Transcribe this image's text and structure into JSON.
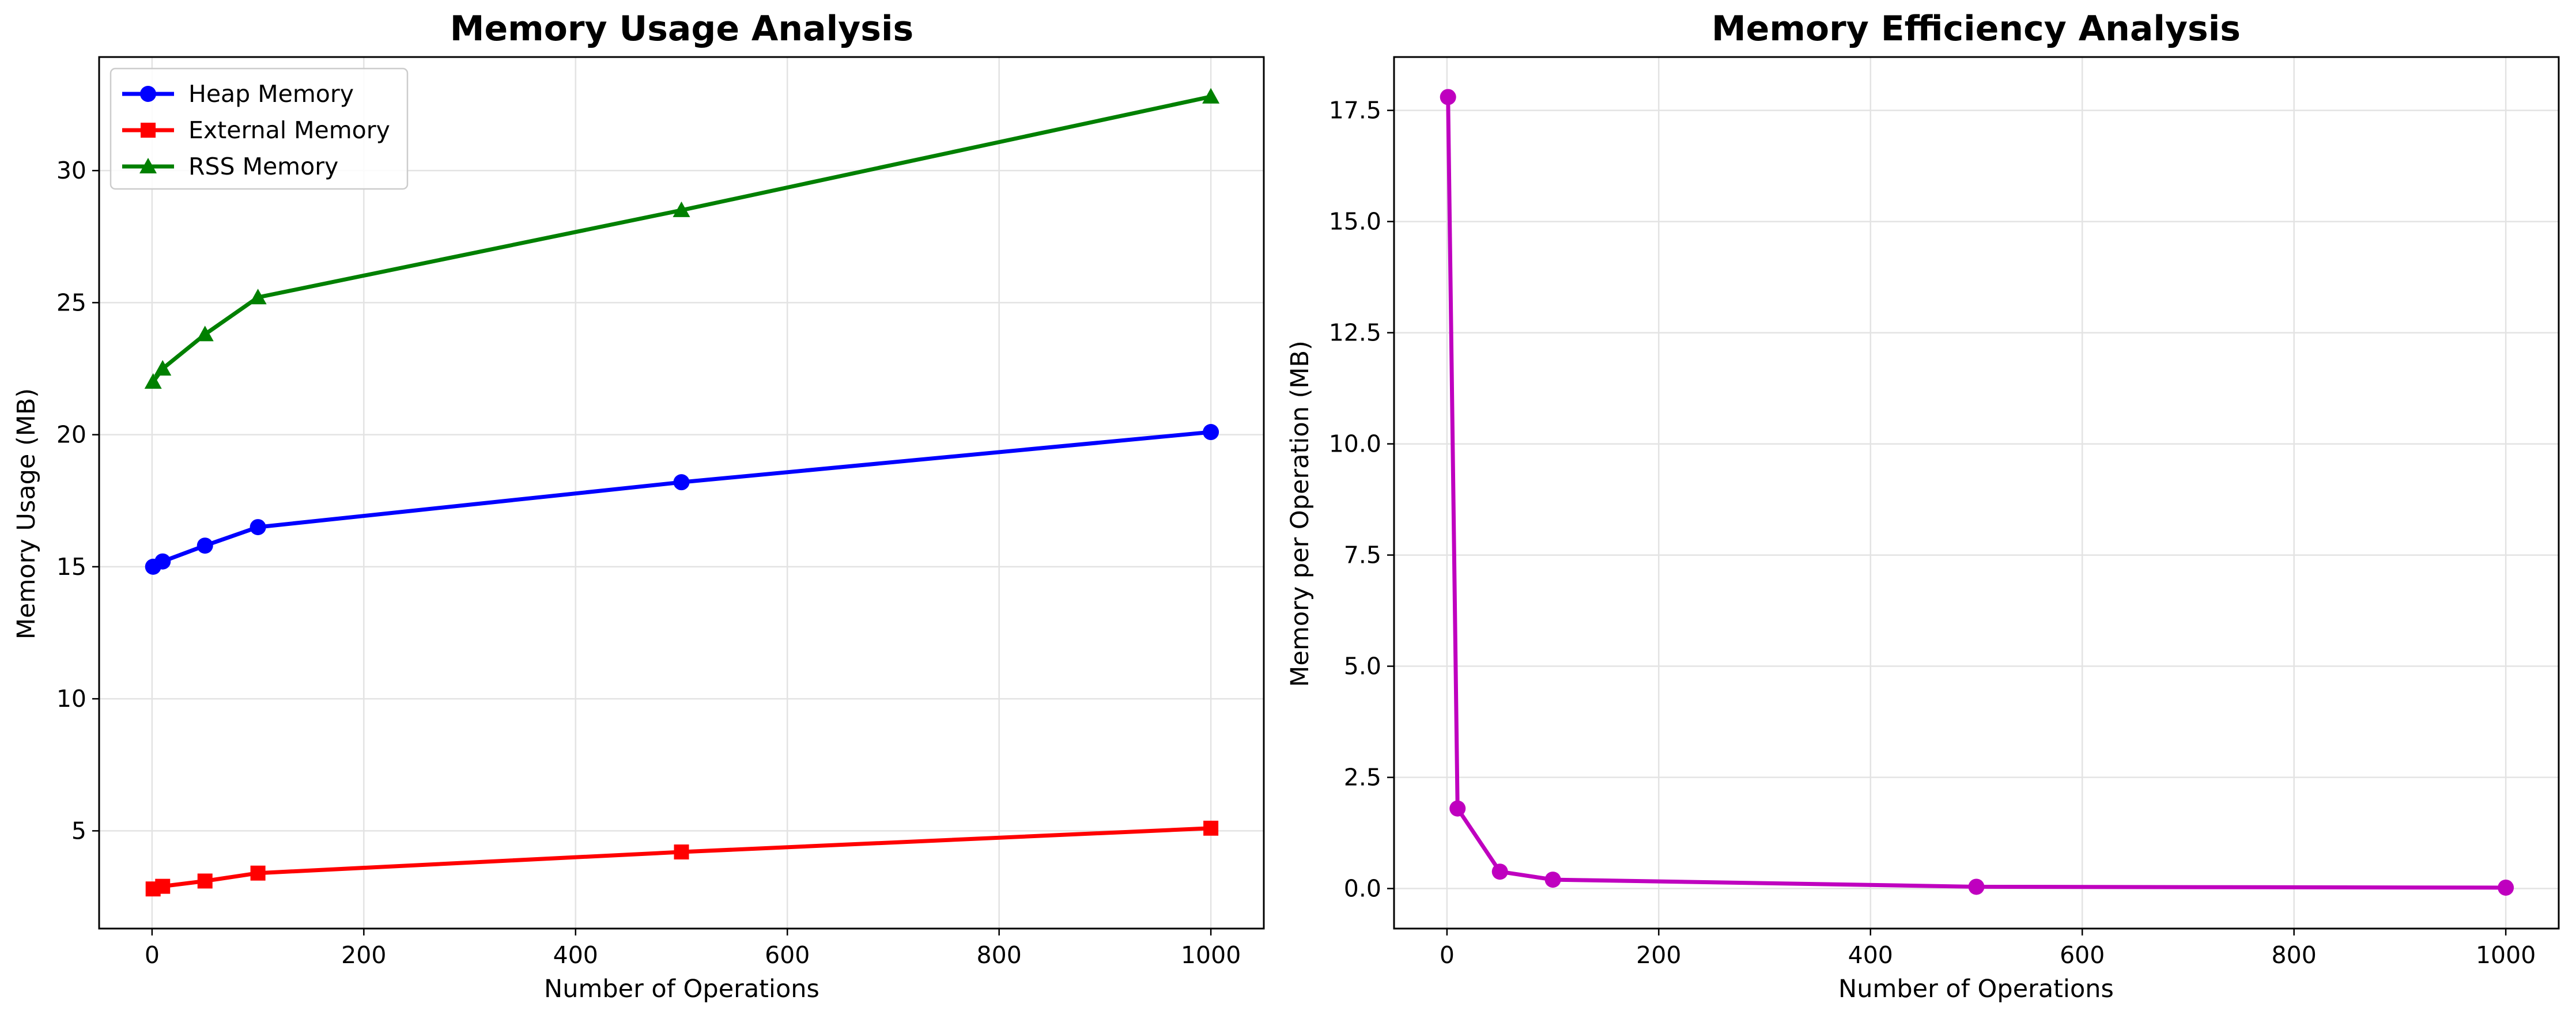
{
  "chart_data": [
    {
      "type": "line",
      "title": "Memory Usage Analysis",
      "xlabel": "Number of Operations",
      "ylabel": "Memory Usage (MB)",
      "xlim": [
        -50,
        1050
      ],
      "ylim": [
        1.3,
        34.3
      ],
      "grid": true,
      "legend_position": "top-left",
      "x": [
        1,
        10,
        50,
        100,
        500,
        1000
      ],
      "x_ticks": [
        0,
        200,
        400,
        600,
        800,
        1000
      ],
      "y_ticks": [
        5,
        10,
        15,
        20,
        25,
        30
      ],
      "series": [
        {
          "name": "Heap Memory",
          "color": "#0000ff",
          "marker": "circle",
          "values": [
            15.0,
            15.2,
            15.8,
            16.5,
            18.2,
            20.1
          ]
        },
        {
          "name": "External Memory",
          "color": "#ff0000",
          "marker": "square",
          "values": [
            2.8,
            2.9,
            3.1,
            3.4,
            4.2,
            5.1
          ]
        },
        {
          "name": "RSS Memory",
          "color": "#008000",
          "marker": "triangle",
          "values": [
            22.0,
            22.5,
            23.8,
            25.2,
            28.5,
            32.8
          ]
        }
      ]
    },
    {
      "type": "line",
      "title": "Memory Efficiency Analysis",
      "xlabel": "Number of Operations",
      "ylabel": "Memory per Operation (MB)",
      "xlim": [
        -50,
        1050
      ],
      "ylim": [
        -0.9,
        18.7
      ],
      "grid": true,
      "x": [
        1,
        10,
        50,
        100,
        500,
        1000
      ],
      "x_ticks": [
        0,
        200,
        400,
        600,
        800,
        1000
      ],
      "y_ticks": [
        0.0,
        2.5,
        5.0,
        7.5,
        10.0,
        12.5,
        15.0,
        17.5
      ],
      "y_tick_decimals": 1,
      "series": [
        {
          "color": "#bf00bf",
          "marker": "circle",
          "values": [
            17.8,
            1.8,
            0.38,
            0.2,
            0.04,
            0.02
          ]
        }
      ]
    }
  ]
}
